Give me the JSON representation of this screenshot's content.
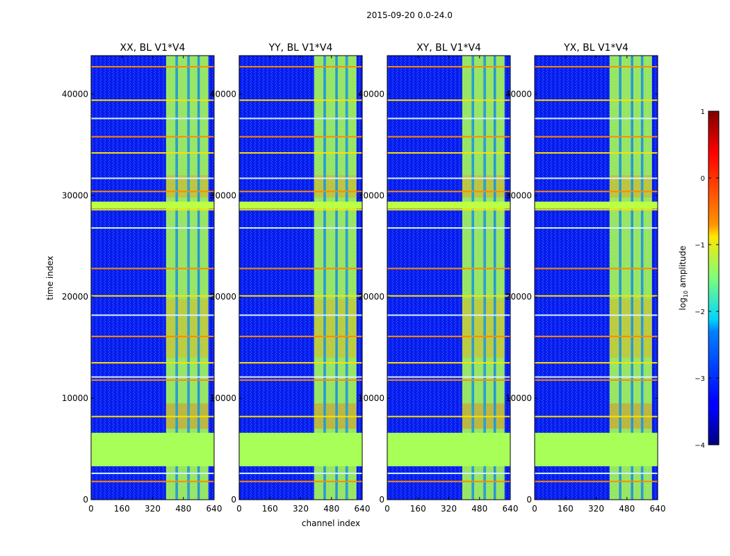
{
  "figure": {
    "suptitle": "2015-09-20 0.0-24.0"
  },
  "chart_data": {
    "type": "heatmap",
    "panels": [
      {
        "title": "XX, BL V1*V4",
        "polarization": "XX"
      },
      {
        "title": "YY, BL V1*V4",
        "polarization": "YY"
      },
      {
        "title": "XY, BL V1*V4",
        "polarization": "XY"
      },
      {
        "title": "YX, BL V1*V4",
        "polarization": "YX"
      }
    ],
    "xlabel": "channel index",
    "ylabel": "time index",
    "xlim": [
      0,
      640
    ],
    "ylim": [
      0,
      43800
    ],
    "xticks": [
      0,
      160,
      320,
      480,
      640
    ],
    "xtick_labels": [
      "0",
      "160",
      "320",
      "480",
      "640"
    ],
    "yticks": [
      0,
      10000,
      20000,
      30000,
      40000
    ],
    "ytick_labels": [
      "0",
      "10000",
      "20000",
      "30000",
      "40000"
    ],
    "colorbar": {
      "label": "log10 amplitude",
      "label_main": "log",
      "label_sub": "10",
      "label_rest": " amplitude",
      "range": [
        -4,
        1
      ],
      "ticks": [
        1,
        0,
        -1,
        -2,
        -3,
        -4
      ],
      "tick_labels": [
        "1",
        "0",
        "−1",
        "−2",
        "−3",
        "−4"
      ],
      "colormap": "jet"
    },
    "features": {
      "background_level": -3.2,
      "flagged_time_range": [
        3300,
        6600
      ],
      "flagged_level": -1.3,
      "bright_channel_range": [
        390,
        610
      ],
      "bright_level": -1.2,
      "rfi_rows": [
        1800,
        2600,
        8200,
        11800,
        12100,
        13500,
        16100,
        18200,
        20100,
        22800,
        26800,
        28600,
        30400,
        31700,
        34200,
        35800,
        37600,
        39400,
        42700
      ]
    }
  },
  "colors": {
    "background": "#ffffff",
    "axes": "#000000"
  }
}
